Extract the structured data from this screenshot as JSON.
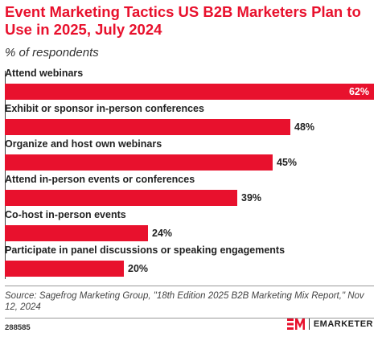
{
  "chart_data": {
    "type": "bar",
    "orientation": "horizontal",
    "title": "Event Marketing Tactics US B2B Marketers Plan to Use in 2025, July 2024",
    "subtitle": "% of respondents",
    "categories": [
      "Attend webinars",
      "Exhibit or sponsor in-person conferences",
      "Organize and host own webinars",
      "Attend in-person events or conferences",
      "Co-host in-person events",
      "Participate in panel discussions or speaking engagements"
    ],
    "values": [
      62,
      48,
      45,
      39,
      24,
      20
    ],
    "value_labels": [
      "62%",
      "48%",
      "45%",
      "39%",
      "24%",
      "20%"
    ],
    "xlim": [
      0,
      62
    ],
    "grid": false,
    "bar_color": "#e8112d"
  },
  "footer": {
    "source": "Source: Sagefrog Marketing Group, \"18th Edition 2025 B2B Marketing Mix Report,\" Nov 12, 2024",
    "chart_id": "288585",
    "brand": "EMARKETER"
  },
  "colors": {
    "accent": "#e8112d",
    "text": "#222222"
  }
}
